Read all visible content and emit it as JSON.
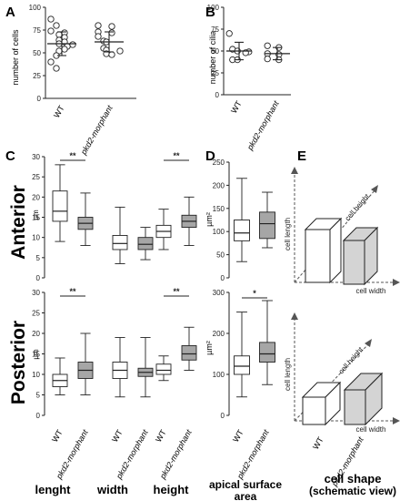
{
  "colors": {
    "wt_box": "#ffffff",
    "morphant_box": "#a6a6a6",
    "ink": "#222222",
    "cuboid_fill": "#d4d4d4"
  },
  "chart_data": [
    {
      "panel": "A",
      "type": "scatter",
      "ylabel": "number of cells",
      "ylim": [
        0,
        100
      ],
      "yticks": [
        "0",
        "25",
        "50",
        "75",
        "100"
      ],
      "categories": [
        "WT",
        "pkd2-morphant"
      ],
      "series": [
        {
          "category": "WT",
          "values": [
            87,
            80,
            74,
            72,
            70,
            67,
            64,
            62,
            60,
            59,
            57,
            54,
            52,
            47,
            40,
            33
          ],
          "mean": 60,
          "sd": 13
        },
        {
          "category": "pkd2-morphant",
          "values": [
            80,
            79,
            73,
            72,
            68,
            63,
            62,
            55,
            53,
            52,
            49,
            48
          ],
          "mean": 62,
          "sd": 11
        }
      ]
    },
    {
      "panel": "B",
      "type": "scatter",
      "ylabel": "number of cilia",
      "ylim": [
        0,
        100
      ],
      "yticks": [
        "0",
        "25",
        "50",
        "75",
        "100"
      ],
      "categories": [
        "WT",
        "pkd2-morphant"
      ],
      "series": [
        {
          "category": "WT",
          "values": [
            70,
            52,
            50,
            49,
            48,
            40,
            40
          ],
          "mean": 50,
          "sd": 10
        },
        {
          "category": "pkd2-morphant",
          "values": [
            56,
            54,
            47,
            46,
            41,
            40
          ],
          "mean": 47,
          "sd": 7
        }
      ]
    },
    {
      "panel": "C",
      "type": "box",
      "row": "Anterior",
      "ylabel": "µm",
      "ylim": [
        0,
        30
      ],
      "yticks": [
        "0",
        "5",
        "10",
        "15",
        "20",
        "25",
        "30"
      ],
      "groups": [
        {
          "metric": "lenght",
          "significance": "**",
          "boxes": [
            {
              "category": "WT",
              "min": 9,
              "q1": 14,
              "median": 16.5,
              "q3": 21.5,
              "max": 28
            },
            {
              "category": "pkd2-morphant",
              "min": 8,
              "q1": 12,
              "median": 13.5,
              "q3": 15,
              "max": 21
            }
          ]
        },
        {
          "metric": "width",
          "significance": "",
          "boxes": [
            {
              "category": "WT",
              "min": 3.5,
              "q1": 7,
              "median": 8.5,
              "q3": 10.5,
              "max": 17.5
            },
            {
              "category": "pkd2-morphant",
              "min": 4.5,
              "q1": 7,
              "median": 8.3,
              "q3": 10,
              "max": 12.5
            }
          ]
        },
        {
          "metric": "height",
          "significance": "**",
          "boxes": [
            {
              "category": "WT",
              "min": 7,
              "q1": 10,
              "median": 11.5,
              "q3": 13,
              "max": 17
            },
            {
              "category": "pkd2-morphant",
              "min": 8,
              "q1": 12.5,
              "median": 14,
              "q3": 15.5,
              "max": 20
            }
          ]
        }
      ]
    },
    {
      "panel": "C",
      "type": "box",
      "row": "Posterior",
      "ylabel": "µm",
      "ylim": [
        0,
        30
      ],
      "yticks": [
        "0",
        "5",
        "10",
        "15",
        "20",
        "25",
        "30"
      ],
      "xlabels": [
        "WT",
        "pkd2-morphant",
        "WT",
        "pkd2-morphant",
        "WT",
        "pkd2-morphant"
      ],
      "group_labels": [
        "lenght",
        "width",
        "height"
      ],
      "groups": [
        {
          "metric": "lenght",
          "significance": "**",
          "boxes": [
            {
              "category": "WT",
              "min": 5,
              "q1": 7,
              "median": 8.5,
              "q3": 10,
              "max": 14
            },
            {
              "category": "pkd2-morphant",
              "min": 5,
              "q1": 9,
              "median": 11,
              "q3": 13,
              "max": 20
            }
          ]
        },
        {
          "metric": "width",
          "significance": "",
          "boxes": [
            {
              "category": "WT",
              "min": 4.5,
              "q1": 9,
              "median": 11,
              "q3": 13,
              "max": 19
            },
            {
              "category": "pkd2-morphant",
              "min": 4.5,
              "q1": 9.5,
              "median": 10.5,
              "q3": 11.5,
              "max": 19
            }
          ]
        },
        {
          "metric": "height",
          "significance": "**",
          "boxes": [
            {
              "category": "WT",
              "min": 8.5,
              "q1": 10,
              "median": 11,
              "q3": 12.5,
              "max": 14.5
            },
            {
              "category": "pkd2-morphant",
              "min": 11,
              "q1": 13.5,
              "median": 15,
              "q3": 17,
              "max": 21.5
            }
          ]
        }
      ]
    },
    {
      "panel": "D",
      "type": "box",
      "row": "Anterior",
      "ylabel": "µm²",
      "ylim": [
        0,
        250
      ],
      "yticks": [
        "0",
        "50",
        "100",
        "150",
        "200",
        "250"
      ],
      "significance": "",
      "boxes": [
        {
          "category": "WT",
          "min": 35,
          "q1": 80,
          "median": 97,
          "q3": 125,
          "max": 215
        },
        {
          "category": "pkd2-morphant",
          "min": 65,
          "q1": 85,
          "median": 117,
          "q3": 142,
          "max": 185
        }
      ]
    },
    {
      "panel": "D",
      "type": "box",
      "row": "Posterior",
      "ylabel": "µm²",
      "ylim": [
        0,
        300
      ],
      "yticks": [
        "0",
        "100",
        "200",
        "300"
      ],
      "significance": "*",
      "xlabels": [
        "WT",
        "pkd2-morphant"
      ],
      "group_labels": [
        "apical surface",
        "area"
      ],
      "boxes": [
        {
          "category": "WT",
          "min": 45,
          "q1": 100,
          "median": 120,
          "q3": 145,
          "max": 252
        },
        {
          "category": "pkd2-morphant",
          "min": 75,
          "q1": 130,
          "median": 150,
          "q3": 178,
          "max": 280
        }
      ]
    }
  ],
  "panel_letters": [
    "A",
    "B",
    "C",
    "D",
    "E"
  ],
  "panelA": {
    "xlabels": [
      "WT",
      "pkd2-morphant"
    ]
  },
  "panelB": {
    "xlabels": [
      "WT",
      "pkd2-morphant"
    ]
  },
  "rows": {
    "anterior": "Anterior",
    "posterior": "Posterior"
  },
  "panelE": {
    "axis_length": "cell length",
    "axis_height": "cell height",
    "axis_width": "cell width",
    "xlabels": [
      "WT",
      "pkd2-morphant"
    ],
    "title_line1": "cell shape",
    "title_line2": "(schematic view)"
  }
}
